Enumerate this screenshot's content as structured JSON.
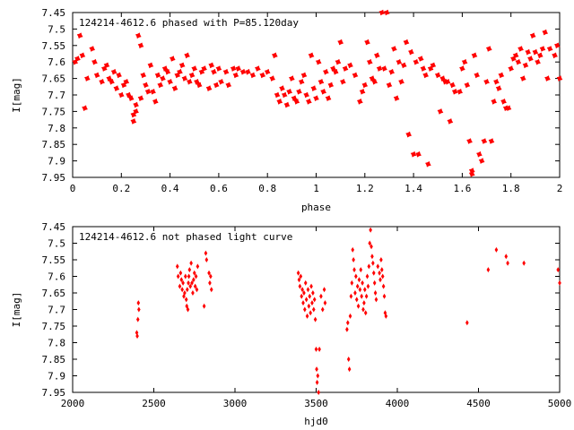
{
  "chart_data": [
    {
      "type": "scatter",
      "title": "124214-4612.6 phased with P=85.120day",
      "xlabel": "phase",
      "ylabel": "I[mag]",
      "xlim": [
        0,
        2
      ],
      "ylim": [
        7.45,
        7.95
      ],
      "y_inverted": true,
      "xticks": [
        "0",
        "0.2",
        "0.4",
        "0.6",
        "0.8",
        "1",
        "1.2",
        "1.4",
        "1.6",
        "1.8",
        "2"
      ],
      "yticks": [
        "7.45",
        "7.5",
        "7.55",
        "7.6",
        "7.65",
        "7.7",
        "7.75",
        "7.8",
        "7.85",
        "7.9",
        "7.95"
      ],
      "marker": "star",
      "color": "#ff0000",
      "points": [
        [
          0.01,
          7.6
        ],
        [
          0.02,
          7.59
        ],
        [
          0.03,
          7.52
        ],
        [
          0.04,
          7.58
        ],
        [
          0.05,
          7.74
        ],
        [
          0.06,
          7.65
        ],
        [
          0.08,
          7.56
        ],
        [
          0.09,
          7.6
        ],
        [
          0.1,
          7.64
        ],
        [
          0.12,
          7.66
        ],
        [
          0.13,
          7.62
        ],
        [
          0.14,
          7.61
        ],
        [
          0.15,
          7.65
        ],
        [
          0.16,
          7.66
        ],
        [
          0.17,
          7.63
        ],
        [
          0.18,
          7.68
        ],
        [
          0.19,
          7.64
        ],
        [
          0.2,
          7.7
        ],
        [
          0.21,
          7.67
        ],
        [
          0.22,
          7.66
        ],
        [
          0.23,
          7.7
        ],
        [
          0.24,
          7.71
        ],
        [
          0.25,
          7.76
        ],
        [
          0.25,
          7.78
        ],
        [
          0.26,
          7.73
        ],
        [
          0.26,
          7.75
        ],
        [
          0.27,
          7.52
        ],
        [
          0.28,
          7.71
        ],
        [
          0.28,
          7.55
        ],
        [
          0.29,
          7.64
        ],
        [
          0.3,
          7.67
        ],
        [
          0.31,
          7.69
        ],
        [
          0.32,
          7.61
        ],
        [
          0.33,
          7.69
        ],
        [
          0.34,
          7.72
        ],
        [
          0.35,
          7.64
        ],
        [
          0.36,
          7.67
        ],
        [
          0.37,
          7.65
        ],
        [
          0.38,
          7.62
        ],
        [
          0.39,
          7.63
        ],
        [
          0.4,
          7.66
        ],
        [
          0.41,
          7.59
        ],
        [
          0.42,
          7.68
        ],
        [
          0.43,
          7.64
        ],
        [
          0.44,
          7.63
        ],
        [
          0.45,
          7.61
        ],
        [
          0.46,
          7.65
        ],
        [
          0.47,
          7.58
        ],
        [
          0.48,
          7.66
        ],
        [
          0.49,
          7.64
        ],
        [
          0.5,
          7.62
        ],
        [
          0.51,
          7.66
        ],
        [
          0.52,
          7.67
        ],
        [
          0.53,
          7.63
        ],
        [
          0.54,
          7.62
        ],
        [
          0.56,
          7.68
        ],
        [
          0.57,
          7.61
        ],
        [
          0.58,
          7.63
        ],
        [
          0.59,
          7.67
        ],
        [
          0.6,
          7.62
        ],
        [
          0.61,
          7.66
        ],
        [
          0.63,
          7.63
        ],
        [
          0.64,
          7.67
        ],
        [
          0.66,
          7.62
        ],
        [
          0.67,
          7.64
        ],
        [
          0.68,
          7.62
        ],
        [
          0.7,
          7.63
        ],
        [
          0.72,
          7.63
        ],
        [
          0.74,
          7.64
        ],
        [
          0.76,
          7.62
        ],
        [
          0.78,
          7.64
        ],
        [
          0.8,
          7.63
        ],
        [
          0.82,
          7.65
        ],
        [
          0.83,
          7.58
        ],
        [
          0.84,
          7.7
        ],
        [
          0.85,
          7.72
        ],
        [
          0.86,
          7.68
        ],
        [
          0.87,
          7.7
        ],
        [
          0.88,
          7.73
        ],
        [
          0.89,
          7.69
        ],
        [
          0.9,
          7.65
        ],
        [
          0.91,
          7.71
        ],
        [
          0.92,
          7.72
        ],
        [
          0.93,
          7.69
        ],
        [
          0.94,
          7.66
        ],
        [
          0.95,
          7.64
        ],
        [
          0.96,
          7.7
        ],
        [
          0.97,
          7.72
        ],
        [
          0.98,
          7.58
        ],
        [
          0.99,
          7.68
        ],
        [
          1.0,
          7.71
        ],
        [
          1.01,
          7.6
        ],
        [
          1.02,
          7.66
        ],
        [
          1.03,
          7.69
        ],
        [
          1.04,
          7.63
        ],
        [
          1.05,
          7.71
        ],
        [
          1.06,
          7.67
        ],
        [
          1.07,
          7.62
        ],
        [
          1.08,
          7.63
        ],
        [
          1.09,
          7.6
        ],
        [
          1.1,
          7.54
        ],
        [
          1.11,
          7.66
        ],
        [
          1.12,
          7.62
        ],
        [
          1.14,
          7.61
        ],
        [
          1.16,
          7.64
        ],
        [
          1.18,
          7.72
        ],
        [
          1.19,
          7.69
        ],
        [
          1.2,
          7.67
        ],
        [
          1.21,
          7.54
        ],
        [
          1.22,
          7.6
        ],
        [
          1.23,
          7.65
        ],
        [
          1.24,
          7.66
        ],
        [
          1.25,
          7.58
        ],
        [
          1.26,
          7.62
        ],
        [
          1.27,
          7.45
        ],
        [
          1.28,
          7.62
        ],
        [
          1.29,
          7.45
        ],
        [
          1.3,
          7.67
        ],
        [
          1.31,
          7.63
        ],
        [
          1.32,
          7.56
        ],
        [
          1.33,
          7.71
        ],
        [
          1.34,
          7.6
        ],
        [
          1.35,
          7.66
        ],
        [
          1.36,
          7.61
        ],
        [
          1.37,
          7.54
        ],
        [
          1.38,
          7.82
        ],
        [
          1.39,
          7.57
        ],
        [
          1.4,
          7.88
        ],
        [
          1.41,
          7.6
        ],
        [
          1.42,
          7.88
        ],
        [
          1.43,
          7.59
        ],
        [
          1.44,
          7.62
        ],
        [
          1.45,
          7.64
        ],
        [
          1.46,
          7.91
        ],
        [
          1.47,
          7.62
        ],
        [
          1.48,
          7.61
        ],
        [
          1.5,
          7.64
        ],
        [
          1.51,
          7.75
        ],
        [
          1.52,
          7.65
        ],
        [
          1.53,
          7.66
        ],
        [
          1.54,
          7.66
        ],
        [
          1.55,
          7.78
        ],
        [
          1.56,
          7.67
        ],
        [
          1.57,
          7.69
        ],
        [
          1.59,
          7.69
        ],
        [
          1.6,
          7.62
        ],
        [
          1.61,
          7.6
        ],
        [
          1.62,
          7.67
        ],
        [
          1.63,
          7.84
        ],
        [
          1.64,
          7.94
        ],
        [
          1.64,
          7.93
        ],
        [
          1.65,
          7.58
        ],
        [
          1.66,
          7.64
        ],
        [
          1.67,
          7.88
        ],
        [
          1.68,
          7.9
        ],
        [
          1.69,
          7.84
        ],
        [
          1.7,
          7.66
        ],
        [
          1.71,
          7.56
        ],
        [
          1.72,
          7.84
        ],
        [
          1.73,
          7.72
        ],
        [
          1.74,
          7.66
        ],
        [
          1.75,
          7.68
        ],
        [
          1.76,
          7.64
        ],
        [
          1.77,
          7.72
        ],
        [
          1.78,
          7.74
        ],
        [
          1.79,
          7.74
        ],
        [
          1.8,
          7.62
        ],
        [
          1.81,
          7.59
        ],
        [
          1.82,
          7.58
        ],
        [
          1.83,
          7.6
        ],
        [
          1.84,
          7.56
        ],
        [
          1.85,
          7.65
        ],
        [
          1.86,
          7.61
        ],
        [
          1.87,
          7.57
        ],
        [
          1.88,
          7.59
        ],
        [
          1.89,
          7.52
        ],
        [
          1.9,
          7.57
        ],
        [
          1.91,
          7.6
        ],
        [
          1.92,
          7.58
        ],
        [
          1.93,
          7.56
        ],
        [
          1.94,
          7.51
        ],
        [
          1.95,
          7.65
        ],
        [
          1.96,
          7.56
        ],
        [
          1.98,
          7.58
        ],
        [
          1.99,
          7.55
        ],
        [
          2.0,
          7.65
        ]
      ]
    },
    {
      "type": "scatter",
      "title": "124214-4612.6 not phased light curve",
      "xlabel": "hjd0",
      "ylabel": "I[mag]",
      "xlim": [
        2000,
        5000
      ],
      "ylim": [
        7.45,
        7.95
      ],
      "y_inverted": true,
      "xticks": [
        "2000",
        "2500",
        "3000",
        "3500",
        "4000",
        "4500",
        "5000"
      ],
      "yticks": [
        "7.45",
        "7.5",
        "7.55",
        "7.6",
        "7.65",
        "7.7",
        "7.75",
        "7.8",
        "7.85",
        "7.9",
        "7.95"
      ],
      "marker": "diamond",
      "color": "#ff0000",
      "points": [
        [
          2395,
          7.77
        ],
        [
          2398,
          7.78
        ],
        [
          2402,
          7.73
        ],
        [
          2405,
          7.68
        ],
        [
          2408,
          7.7
        ],
        [
          2645,
          7.57
        ],
        [
          2650,
          7.6
        ],
        [
          2660,
          7.63
        ],
        [
          2665,
          7.59
        ],
        [
          2670,
          7.61
        ],
        [
          2675,
          7.64
        ],
        [
          2680,
          7.62
        ],
        [
          2685,
          7.66
        ],
        [
          2690,
          7.65
        ],
        [
          2695,
          7.6
        ],
        [
          2700,
          7.67
        ],
        [
          2703,
          7.69
        ],
        [
          2706,
          7.64
        ],
        [
          2710,
          7.7
        ],
        [
          2713,
          7.62
        ],
        [
          2716,
          7.6
        ],
        [
          2720,
          7.58
        ],
        [
          2725,
          7.63
        ],
        [
          2730,
          7.56
        ],
        [
          2735,
          7.62
        ],
        [
          2740,
          7.65
        ],
        [
          2745,
          7.61
        ],
        [
          2750,
          7.59
        ],
        [
          2755,
          7.63
        ],
        [
          2760,
          7.6
        ],
        [
          2765,
          7.64
        ],
        [
          2770,
          7.57
        ],
        [
          2810,
          7.69
        ],
        [
          2820,
          7.53
        ],
        [
          2825,
          7.55
        ],
        [
          2840,
          7.59
        ],
        [
          2845,
          7.62
        ],
        [
          2850,
          7.6
        ],
        [
          2855,
          7.64
        ],
        [
          3390,
          7.59
        ],
        [
          3395,
          7.61
        ],
        [
          3400,
          7.63
        ],
        [
          3405,
          7.6
        ],
        [
          3410,
          7.66
        ],
        [
          3415,
          7.64
        ],
        [
          3420,
          7.68
        ],
        [
          3425,
          7.65
        ],
        [
          3430,
          7.7
        ],
        [
          3435,
          7.62
        ],
        [
          3440,
          7.67
        ],
        [
          3445,
          7.72
        ],
        [
          3450,
          7.64
        ],
        [
          3455,
          7.69
        ],
        [
          3460,
          7.66
        ],
        [
          3465,
          7.71
        ],
        [
          3470,
          7.63
        ],
        [
          3475,
          7.68
        ],
        [
          3480,
          7.65
        ],
        [
          3485,
          7.7
        ],
        [
          3490,
          7.67
        ],
        [
          3495,
          7.73
        ],
        [
          3500,
          7.82
        ],
        [
          3503,
          7.88
        ],
        [
          3506,
          7.92
        ],
        [
          3510,
          7.9
        ],
        [
          3515,
          7.95
        ],
        [
          3520,
          7.82
        ],
        [
          3530,
          7.66
        ],
        [
          3540,
          7.7
        ],
        [
          3550,
          7.64
        ],
        [
          3555,
          7.68
        ],
        [
          3690,
          7.76
        ],
        [
          3695,
          7.74
        ],
        [
          3700,
          7.85
        ],
        [
          3705,
          7.88
        ],
        [
          3710,
          7.72
        ],
        [
          3715,
          7.66
        ],
        [
          3720,
          7.62
        ],
        [
          3725,
          7.52
        ],
        [
          3730,
          7.55
        ],
        [
          3735,
          7.58
        ],
        [
          3740,
          7.65
        ],
        [
          3745,
          7.6
        ],
        [
          3750,
          7.67
        ],
        [
          3755,
          7.63
        ],
        [
          3760,
          7.69
        ],
        [
          3765,
          7.61
        ],
        [
          3770,
          7.64
        ],
        [
          3775,
          7.58
        ],
        [
          3780,
          7.66
        ],
        [
          3785,
          7.62
        ],
        [
          3790,
          7.7
        ],
        [
          3795,
          7.68
        ],
        [
          3800,
          7.64
        ],
        [
          3805,
          7.71
        ],
        [
          3810,
          7.66
        ],
        [
          3815,
          7.6
        ],
        [
          3820,
          7.63
        ],
        [
          3825,
          7.57
        ],
        [
          3830,
          7.5
        ],
        [
          3835,
          7.46
        ],
        [
          3840,
          7.51
        ],
        [
          3845,
          7.54
        ],
        [
          3850,
          7.56
        ],
        [
          3855,
          7.59
        ],
        [
          3860,
          7.62
        ],
        [
          3865,
          7.65
        ],
        [
          3870,
          7.67
        ],
        [
          3880,
          7.57
        ],
        [
          3890,
          7.59
        ],
        [
          3895,
          7.61
        ],
        [
          3900,
          7.55
        ],
        [
          3905,
          7.58
        ],
        [
          3910,
          7.6
        ],
        [
          3915,
          7.63
        ],
        [
          3920,
          7.66
        ],
        [
          3925,
          7.71
        ],
        [
          3930,
          7.72
        ],
        [
          4430,
          7.74
        ],
        [
          4560,
          7.58
        ],
        [
          4610,
          7.52
        ],
        [
          4670,
          7.54
        ],
        [
          4680,
          7.56
        ],
        [
          4780,
          7.56
        ],
        [
          4990,
          7.58
        ],
        [
          5000,
          7.62
        ]
      ]
    }
  ]
}
